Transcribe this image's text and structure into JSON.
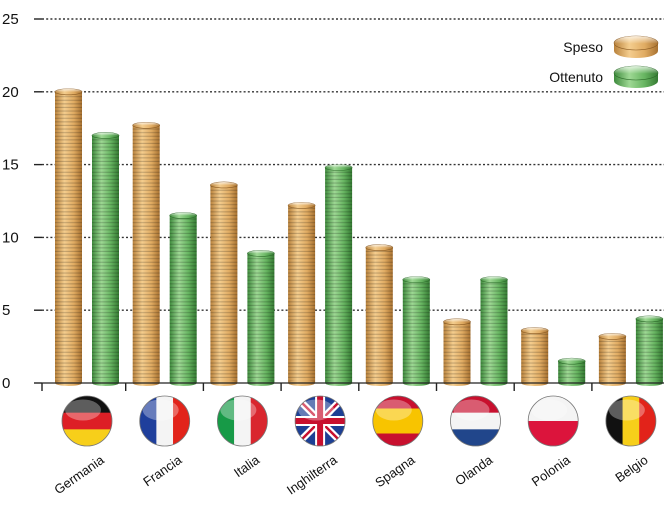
{
  "chart_data": {
    "type": "bar",
    "categories": [
      "Germania",
      "Francia",
      "Italia",
      "Inghilterra",
      "Spagna",
      "Olanda",
      "Polonia",
      "Belgio"
    ],
    "series": [
      {
        "name": "Speso",
        "values": [
          20,
          17.7,
          13.6,
          12.2,
          9.3,
          4.2,
          3.6,
          3.2
        ]
      },
      {
        "name": "Ottenuto",
        "values": [
          17,
          11.5,
          8.9,
          14.8,
          7.1,
          7.1,
          1.5,
          4.4
        ]
      }
    ],
    "yticks": [
      "0",
      "5",
      "10",
      "15",
      "20",
      "25"
    ],
    "ylim": [
      0,
      25
    ],
    "grid": true,
    "legend": "top-right",
    "colors": {
      "Speso": "#e2b36e",
      "Ottenuto": "#6fb96a"
    },
    "flag_icons": [
      "flag-germany-icon",
      "flag-france-icon",
      "flag-italy-icon",
      "flag-uk-icon",
      "flag-spain-icon",
      "flag-netherlands-icon",
      "flag-poland-icon",
      "flag-belgium-icon"
    ]
  }
}
